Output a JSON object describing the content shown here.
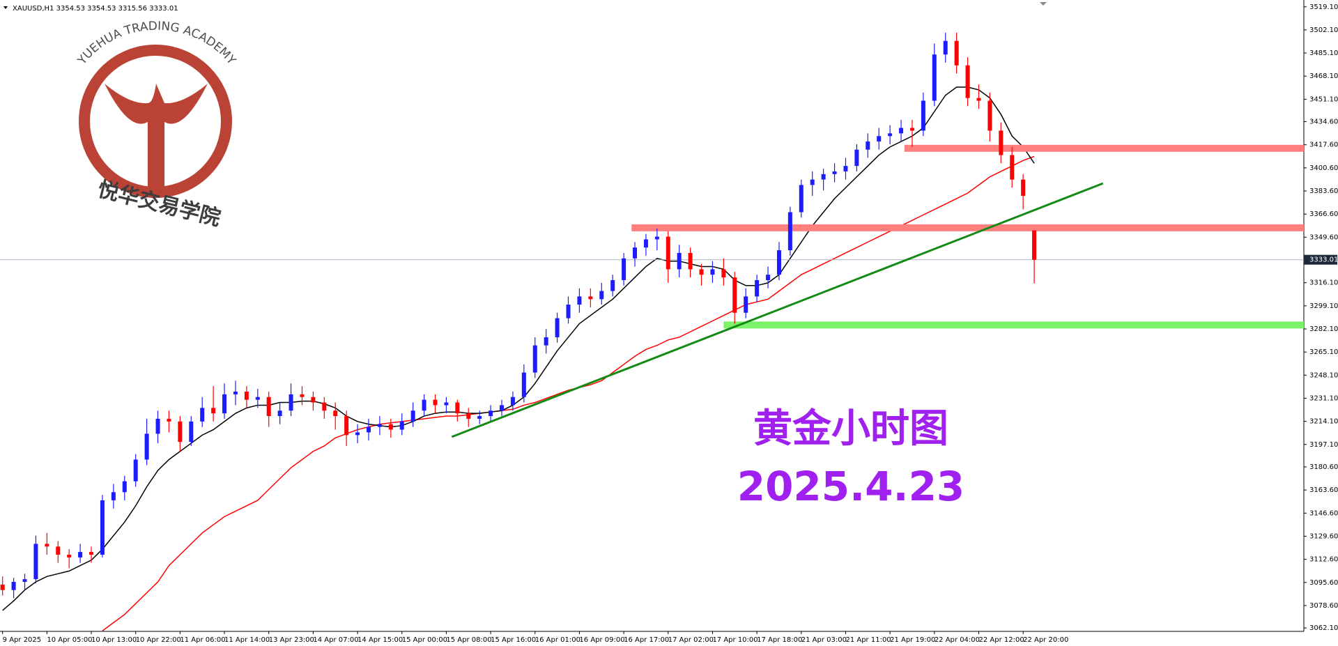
{
  "chart_data": {
    "type": "candlestick",
    "header": "XAUUSD,H1  3354.53 3354.53 3315.56 3333.01",
    "watermark": {
      "en": "YUEHUA TRADING ACADEMY",
      "zh": "悦华交易学院"
    },
    "annotation": {
      "title": "黄金小时图",
      "date": "2025.4.23",
      "color": "#a020f0"
    },
    "ylim": [
      3059.6,
      3524.1
    ],
    "yticks": [
      {
        "value": 3519.1,
        "label": "3519.10"
      },
      {
        "value": 3502.1,
        "label": "3502.10"
      },
      {
        "value": 3485.1,
        "label": "3485.10"
      },
      {
        "value": 3468.1,
        "label": "3468.10"
      },
      {
        "value": 3451.1,
        "label": "3451.10"
      },
      {
        "value": 3434.6,
        "label": "3434.60"
      },
      {
        "value": 3417.6,
        "label": "3417.60"
      },
      {
        "value": 3400.6,
        "label": "3400.60"
      },
      {
        "value": 3383.6,
        "label": "3383.60"
      },
      {
        "value": 3366.6,
        "label": "3366.60"
      },
      {
        "value": 3349.6,
        "label": "3349.60"
      },
      {
        "value": 3316.1,
        "label": "3316.10"
      },
      {
        "value": 3299.1,
        "label": "3299.10"
      },
      {
        "value": 3282.1,
        "label": "3282.10"
      },
      {
        "value": 3265.1,
        "label": "3265.10"
      },
      {
        "value": 3248.1,
        "label": "3248.10"
      },
      {
        "value": 3231.1,
        "label": "3231.10"
      },
      {
        "value": 3214.1,
        "label": "3214.10"
      },
      {
        "value": 3197.1,
        "label": "3197.10"
      },
      {
        "value": 3180.6,
        "label": "3180.60"
      },
      {
        "value": 3163.6,
        "label": "3163.60"
      },
      {
        "value": 3146.6,
        "label": "3146.60"
      },
      {
        "value": 3129.6,
        "label": "3129.60"
      },
      {
        "value": 3112.6,
        "label": "3112.60"
      },
      {
        "value": 3095.6,
        "label": "3095.60"
      },
      {
        "value": 3078.6,
        "label": "3078.60"
      },
      {
        "value": 3062.1,
        "label": "3062.10"
      }
    ],
    "last_price": 3333.01,
    "time_labels": [
      "9 Apr 2025",
      "10 Apr 05:00",
      "10 Apr 13:00",
      "10 Apr 22:00",
      "11 Apr 06:00",
      "11 Apr 14:00",
      "13 Apr 23:00",
      "14 Apr 07:00",
      "14 Apr 15:00",
      "15 Apr 00:00",
      "15 Apr 08:00",
      "15 Apr 16:00",
      "16 Apr 01:00",
      "16 Apr 09:00",
      "16 Apr 17:00",
      "17 Apr 02:00",
      "17 Apr 10:00",
      "17 Apr 18:00",
      "21 Apr 03:00",
      "21 Apr 11:00",
      "21 Apr 19:00",
      "22 Apr 04:00",
      "22 Apr 12:00",
      "22 Apr 20:00"
    ],
    "bull_color": "#1c1cff",
    "bear_color": "#ff0000",
    "ohlc": [
      [
        3094,
        3100,
        3086,
        3090
      ],
      [
        3090,
        3099,
        3084,
        3096
      ],
      [
        3096,
        3102,
        3090,
        3098
      ],
      [
        3098,
        3130,
        3095,
        3124
      ],
      [
        3124,
        3132,
        3116,
        3122
      ],
      [
        3122,
        3126,
        3110,
        3116
      ],
      [
        3116,
        3120,
        3106,
        3114
      ],
      [
        3114,
        3124,
        3110,
        3118
      ],
      [
        3118,
        3122,
        3110,
        3116
      ],
      [
        3116,
        3160,
        3114,
        3156
      ],
      [
        3156,
        3168,
        3150,
        3162
      ],
      [
        3162,
        3174,
        3156,
        3170
      ],
      [
        3170,
        3190,
        3166,
        3186
      ],
      [
        3186,
        3216,
        3182,
        3205
      ],
      [
        3205,
        3222,
        3198,
        3216
      ],
      [
        3216,
        3222,
        3206,
        3214
      ],
      [
        3214,
        3218,
        3192,
        3199
      ],
      [
        3199,
        3218,
        3196,
        3214
      ],
      [
        3214,
        3232,
        3210,
        3224
      ],
      [
        3224,
        3240,
        3214,
        3220
      ],
      [
        3220,
        3242,
        3216,
        3234
      ],
      [
        3234,
        3244,
        3226,
        3236
      ],
      [
        3236,
        3240,
        3224,
        3230
      ],
      [
        3230,
        3238,
        3224,
        3232
      ],
      [
        3232,
        3236,
        3210,
        3218
      ],
      [
        3218,
        3228,
        3212,
        3222
      ],
      [
        3222,
        3242,
        3218,
        3234
      ],
      [
        3234,
        3240,
        3226,
        3232
      ],
      [
        3232,
        3236,
        3222,
        3228
      ],
      [
        3228,
        3232,
        3216,
        3222
      ],
      [
        3222,
        3228,
        3208,
        3218
      ],
      [
        3218,
        3222,
        3196,
        3204
      ],
      [
        3204,
        3212,
        3198,
        3206
      ],
      [
        3206,
        3216,
        3200,
        3210
      ],
      [
        3210,
        3218,
        3204,
        3212
      ],
      [
        3212,
        3216,
        3202,
        3208
      ],
      [
        3208,
        3220,
        3204,
        3214
      ],
      [
        3214,
        3228,
        3210,
        3222
      ],
      [
        3222,
        3234,
        3218,
        3230
      ],
      [
        3230,
        3234,
        3220,
        3226
      ],
      [
        3226,
        3232,
        3220,
        3228
      ],
      [
        3228,
        3230,
        3214,
        3220
      ],
      [
        3220,
        3224,
        3210,
        3216
      ],
      [
        3216,
        3222,
        3212,
        3218
      ],
      [
        3218,
        3226,
        3214,
        3222
      ],
      [
        3222,
        3230,
        3218,
        3226
      ],
      [
        3226,
        3236,
        3222,
        3232
      ],
      [
        3232,
        3256,
        3228,
        3250
      ],
      [
        3250,
        3276,
        3246,
        3270
      ],
      [
        3270,
        3282,
        3264,
        3276
      ],
      [
        3276,
        3294,
        3272,
        3290
      ],
      [
        3290,
        3306,
        3286,
        3300
      ],
      [
        3300,
        3312,
        3294,
        3306
      ],
      [
        3306,
        3312,
        3298,
        3304
      ],
      [
        3304,
        3316,
        3300,
        3310
      ],
      [
        3310,
        3322,
        3306,
        3318
      ],
      [
        3318,
        3338,
        3314,
        3334
      ],
      [
        3334,
        3346,
        3328,
        3342
      ],
      [
        3342,
        3352,
        3336,
        3348
      ],
      [
        3348,
        3356,
        3340,
        3350
      ],
      [
        3350,
        3354,
        3316,
        3326
      ],
      [
        3326,
        3344,
        3320,
        3338
      ],
      [
        3338,
        3342,
        3320,
        3326
      ],
      [
        3326,
        3330,
        3314,
        3322
      ],
      [
        3322,
        3332,
        3316,
        3326
      ],
      [
        3326,
        3334,
        3314,
        3320
      ],
      [
        3320,
        3324,
        3286,
        3294
      ],
      [
        3294,
        3312,
        3290,
        3306
      ],
      [
        3306,
        3322,
        3302,
        3318
      ],
      [
        3318,
        3328,
        3312,
        3322
      ],
      [
        3322,
        3346,
        3318,
        3340
      ],
      [
        3340,
        3372,
        3336,
        3368
      ],
      [
        3368,
        3392,
        3364,
        3388
      ],
      [
        3388,
        3398,
        3380,
        3392
      ],
      [
        3392,
        3400,
        3384,
        3396
      ],
      [
        3396,
        3404,
        3390,
        3398
      ],
      [
        3398,
        3408,
        3392,
        3402
      ],
      [
        3402,
        3418,
        3398,
        3414
      ],
      [
        3414,
        3426,
        3408,
        3420
      ],
      [
        3420,
        3430,
        3414,
        3424
      ],
      [
        3424,
        3432,
        3418,
        3426
      ],
      [
        3426,
        3436,
        3420,
        3430
      ],
      [
        3430,
        3436,
        3416,
        3428
      ],
      [
        3428,
        3456,
        3424,
        3450
      ],
      [
        3450,
        3492,
        3446,
        3484
      ],
      [
        3484,
        3500,
        3478,
        3494
      ],
      [
        3494,
        3500,
        3470,
        3476
      ],
      [
        3476,
        3482,
        3446,
        3452
      ],
      [
        3452,
        3462,
        3444,
        3450
      ],
      [
        3450,
        3456,
        3420,
        3428
      ],
      [
        3428,
        3434,
        3404,
        3410
      ],
      [
        3410,
        3416,
        3386,
        3392
      ],
      [
        3392,
        3396,
        3370,
        3380
      ],
      [
        3354.53,
        3354.53,
        3315.56,
        3333.01
      ]
    ],
    "series": [
      {
        "color": "#ff0000",
        "values": [
          null,
          null,
          null,
          null,
          null,
          null,
          null,
          null,
          null,
          3060,
          3066,
          3072,
          3080,
          3088,
          3096,
          3108,
          3116,
          3124,
          3132,
          3138,
          3144,
          3148,
          3152,
          3156,
          3164,
          3172,
          3180,
          3186,
          3192,
          3196,
          3202,
          3205,
          3208,
          3210,
          3212,
          3213,
          3214,
          3215,
          3216,
          3217,
          3218,
          3218,
          3219,
          3220,
          3221,
          3222,
          3223,
          3226,
          3228,
          3231,
          3234,
          3237,
          3239,
          3241,
          3244,
          3250,
          3256,
          3262,
          3267,
          3270,
          3274,
          3276,
          3280,
          3284,
          3288,
          3292,
          3296,
          3300,
          3302,
          3304,
          3310,
          3316,
          3322,
          3326,
          3330,
          3334,
          3338,
          3342,
          3346,
          3350,
          3354,
          3358,
          3362,
          3366,
          3370,
          3374,
          3378,
          3382,
          3388,
          3394,
          3398,
          3402,
          3406,
          3409
        ]
      },
      {
        "color": "#000000",
        "values": [
          3075,
          3082,
          3090,
          3096,
          3100,
          3102,
          3104,
          3108,
          3112,
          3120,
          3130,
          3140,
          3152,
          3166,
          3178,
          3186,
          3192,
          3198,
          3204,
          3208,
          3214,
          3220,
          3224,
          3226,
          3226,
          3228,
          3228,
          3229,
          3229,
          3227,
          3224,
          3218,
          3214,
          3212,
          3211,
          3210,
          3211,
          3214,
          3218,
          3220,
          3221,
          3221,
          3220,
          3220,
          3221,
          3222,
          3226,
          3232,
          3242,
          3254,
          3266,
          3276,
          3286,
          3292,
          3298,
          3304,
          3312,
          3320,
          3328,
          3334,
          3332,
          3332,
          3330,
          3328,
          3328,
          3326,
          3318,
          3314,
          3314,
          3316,
          3322,
          3334,
          3346,
          3358,
          3368,
          3378,
          3386,
          3394,
          3402,
          3410,
          3416,
          3420,
          3424,
          3430,
          3442,
          3454,
          3460,
          3460,
          3458,
          3452,
          3440,
          3424,
          3416,
          3404
        ]
      }
    ],
    "levels": [
      {
        "price": 3415,
        "from": 81.3,
        "color": "#ff7f7f"
      },
      {
        "price": 3356.5,
        "from": 56.7,
        "color": "#ff7f7f"
      },
      {
        "price": 3285,
        "from": 65,
        "color": "#7cf26a"
      }
    ],
    "trendline": {
      "x": [
        40.5,
        99.2
      ],
      "y": [
        3202.7,
        3389.2
      ],
      "color": "#138a13"
    }
  }
}
